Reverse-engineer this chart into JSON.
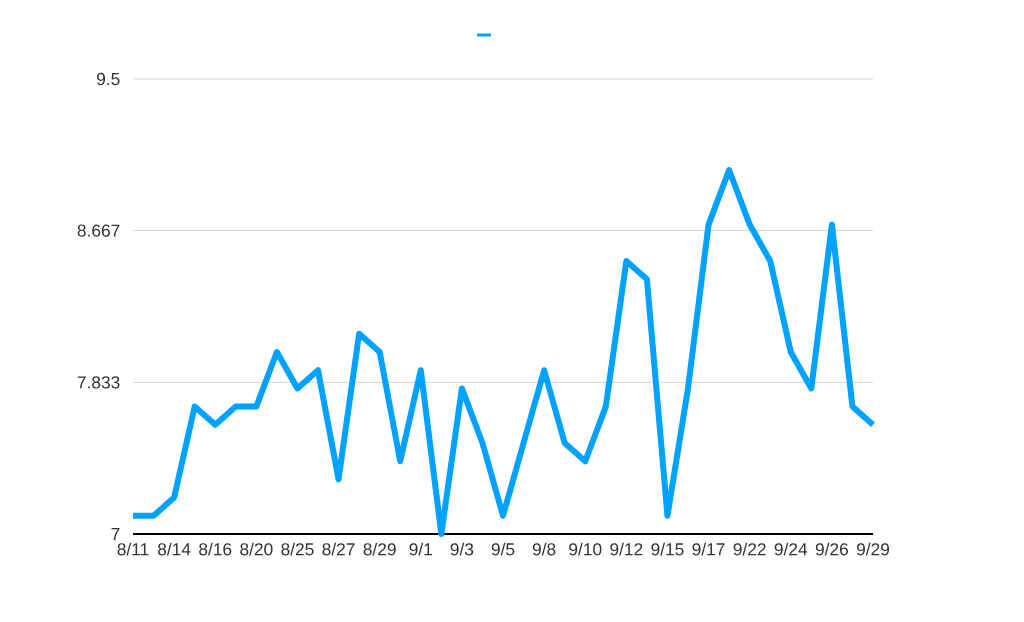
{
  "chart_data": {
    "type": "line",
    "categories": [
      "8/11",
      null,
      "8/14",
      null,
      "8/16",
      null,
      "8/20",
      null,
      "8/25",
      null,
      "8/27",
      null,
      "8/29",
      null,
      "9/1",
      null,
      "9/3",
      null,
      "9/5",
      null,
      "9/8",
      null,
      "9/10",
      null,
      "9/12",
      null,
      "9/15",
      null,
      "9/17",
      null,
      "9/22",
      null,
      "9/24",
      null,
      "9/26",
      null,
      "9/29"
    ],
    "series": [
      {
        "color": "#00a2ff",
        "values": [
          7.1,
          7.1,
          7.2,
          7.7,
          7.6,
          7.7,
          7.7,
          8.0,
          7.8,
          7.9,
          7.3,
          8.1,
          8.0,
          7.4,
          7.9,
          7.0,
          7.8,
          7.5,
          7.1,
          7.5,
          7.9,
          7.5,
          7.4,
          7.7,
          8.5,
          8.4,
          7.1,
          7.8,
          8.7,
          9.0,
          8.7,
          8.5,
          8.0,
          7.8,
          8.7,
          7.7,
          7.6
        ]
      }
    ],
    "ylim": [
      7,
      9.5
    ],
    "yticks": [
      7,
      7.833,
      8.667,
      9.5
    ],
    "grid": "y",
    "marker": "none",
    "line_style": "solid"
  }
}
